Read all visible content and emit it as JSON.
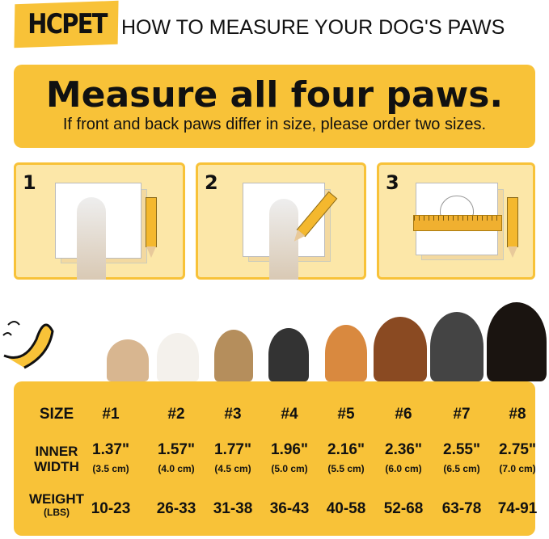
{
  "brand": {
    "logo": "HCPET",
    "title": "HOW TO MEASURE YOUR DOG'S PAWS"
  },
  "banner": {
    "headline": "Measure all four paws.",
    "subtext": "If front and back paws differ in size, please order two sizes."
  },
  "steps": [
    {
      "number": "1"
    },
    {
      "number": "2"
    },
    {
      "number": "3"
    }
  ],
  "colors": {
    "accent": "#F8C238",
    "panel": "#FCE7A8",
    "text": "#111111"
  },
  "size_table": {
    "row_labels": {
      "size": "SIZE",
      "inner_width": [
        "INNER",
        "WIDTH"
      ],
      "weight": [
        "WEIGHT",
        "(LBS)"
      ]
    },
    "sizes": [
      "#1",
      "#2",
      "#3",
      "#4",
      "#5",
      "#6",
      "#7",
      "#8"
    ],
    "inner_width_in": [
      "1.37\"",
      "1.57\"",
      "1.77\"",
      "1.96\"",
      "2.16\"",
      "2.36\"",
      "2.55\"",
      "2.75\""
    ],
    "inner_width_cm": [
      "(3.5 cm)",
      "(4.0 cm)",
      "(4.5 cm)",
      "(5.0 cm)",
      "(5.5 cm)",
      "(6.0 cm)",
      "(6.5 cm)",
      "(7.0 cm)"
    ],
    "weight_lbs": [
      "10-23",
      "26-33",
      "31-38",
      "36-43",
      "40-58",
      "52-68",
      "63-78",
      "74-91"
    ]
  }
}
